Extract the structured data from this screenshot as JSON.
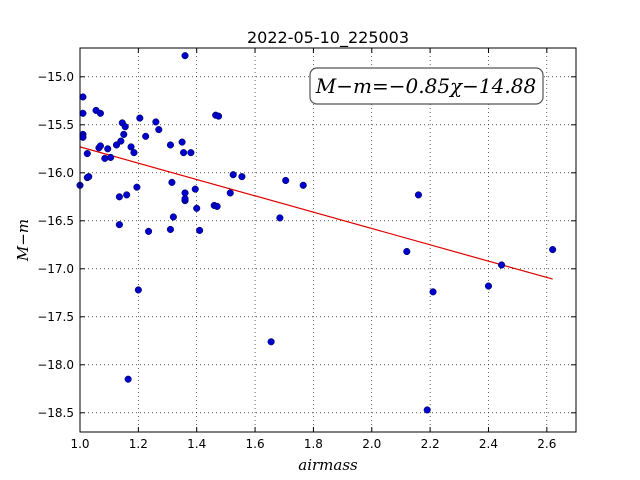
{
  "chart_data": {
    "type": "scatter",
    "title": "2022-05-10_225003",
    "xlabel": "airmass",
    "ylabel": "M−m",
    "xlim": [
      1.0,
      2.7
    ],
    "ylim": [
      -18.7,
      -14.7
    ],
    "x_ticks": [
      1.0,
      1.2,
      1.4,
      1.6,
      1.8,
      2.0,
      2.2,
      2.4,
      2.6
    ],
    "x_tick_labels": [
      "1.0",
      "1.2",
      "1.4",
      "1.6",
      "1.8",
      "2.0",
      "2.2",
      "2.4",
      "2.6"
    ],
    "y_ticks": [
      -15.0,
      -15.5,
      -16.0,
      -16.5,
      -17.0,
      -17.5,
      -18.0,
      -18.5
    ],
    "y_tick_labels": [
      "−15.0",
      "−15.5",
      "−16.0",
      "−16.5",
      "−17.0",
      "−17.5",
      "−18.0",
      "−18.5"
    ],
    "grid": true,
    "annotation": "M−m=−0.85χ−14.88",
    "point_color": "#0000cc",
    "fit_color": "#dd0000",
    "fit_line": {
      "slope": -0.85,
      "intercept": -14.88,
      "x_range": [
        1.0,
        2.62
      ]
    },
    "points": [
      [
        1.0,
        -16.13
      ],
      [
        1.01,
        -15.21
      ],
      [
        1.01,
        -15.38
      ],
      [
        1.01,
        -15.6
      ],
      [
        1.01,
        -15.63
      ],
      [
        1.025,
        -15.8
      ],
      [
        1.025,
        -16.05
      ],
      [
        1.03,
        -16.04
      ],
      [
        1.055,
        -15.35
      ],
      [
        1.065,
        -15.74
      ],
      [
        1.07,
        -15.38
      ],
      [
        1.07,
        -15.72
      ],
      [
        1.085,
        -15.85
      ],
      [
        1.095,
        -15.75
      ],
      [
        1.105,
        -15.84
      ],
      [
        1.125,
        -15.71
      ],
      [
        1.135,
        -16.54
      ],
      [
        1.135,
        -16.25
      ],
      [
        1.14,
        -15.67
      ],
      [
        1.145,
        -15.48
      ],
      [
        1.15,
        -15.6
      ],
      [
        1.155,
        -15.52
      ],
      [
        1.16,
        -16.23
      ],
      [
        1.165,
        -18.15
      ],
      [
        1.175,
        -15.73
      ],
      [
        1.185,
        -15.79
      ],
      [
        1.195,
        -16.15
      ],
      [
        1.2,
        -17.22
      ],
      [
        1.205,
        -15.43
      ],
      [
        1.225,
        -15.62
      ],
      [
        1.235,
        -16.61
      ],
      [
        1.26,
        -15.47
      ],
      [
        1.27,
        -15.55
      ],
      [
        1.31,
        -15.71
      ],
      [
        1.31,
        -16.59
      ],
      [
        1.315,
        -16.1
      ],
      [
        1.32,
        -16.46
      ],
      [
        1.35,
        -15.68
      ],
      [
        1.355,
        -15.79
      ],
      [
        1.36,
        -16.21
      ],
      [
        1.36,
        -16.29
      ],
      [
        1.36,
        -16.27
      ],
      [
        1.36,
        -14.78
      ],
      [
        1.38,
        -15.79
      ],
      [
        1.395,
        -16.17
      ],
      [
        1.4,
        -16.37
      ],
      [
        1.41,
        -16.6
      ],
      [
        1.46,
        -16.34
      ],
      [
        1.465,
        -15.4
      ],
      [
        1.47,
        -16.35
      ],
      [
        1.475,
        -15.41
      ],
      [
        1.515,
        -16.21
      ],
      [
        1.525,
        -16.02
      ],
      [
        1.555,
        -16.04
      ],
      [
        1.655,
        -17.76
      ],
      [
        1.685,
        -16.47
      ],
      [
        1.705,
        -16.08
      ],
      [
        1.765,
        -16.13
      ],
      [
        2.12,
        -16.82
      ],
      [
        2.16,
        -16.23
      ],
      [
        2.19,
        -18.47
      ],
      [
        2.21,
        -17.24
      ],
      [
        2.4,
        -17.18
      ],
      [
        2.445,
        -16.96
      ],
      [
        2.62,
        -16.8
      ]
    ]
  }
}
